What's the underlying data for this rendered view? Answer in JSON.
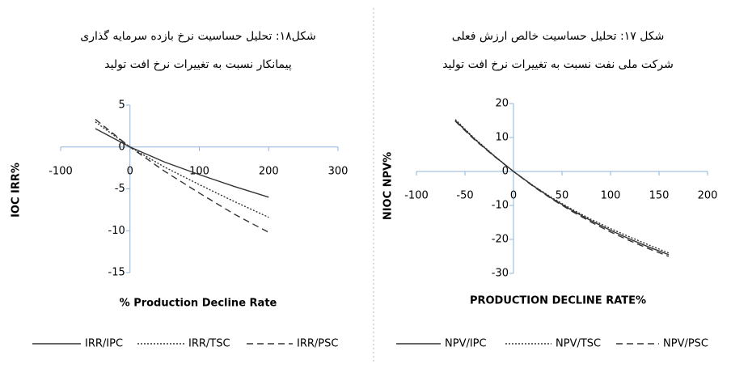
{
  "chart_data": [
    {
      "type": "line",
      "title": [
        "شکل۱۸: تحلیل حساسیت نرخ بازده سرمایه گذاری",
        "پیمانکار نسبت به تغییرات نرخ افت تولید"
      ],
      "y_label": "IOC IRR%",
      "x_label": "% Production Decline Rate",
      "xlim": [
        -100,
        300
      ],
      "xticks": [
        -100,
        0,
        100,
        200,
        300
      ],
      "ylim": [
        -15,
        5
      ],
      "yticks": [
        5,
        0,
        -5,
        -10,
        -15
      ],
      "x": [
        -50,
        0,
        50,
        100,
        150,
        200
      ],
      "series": [
        {
          "name": "IRR/IPC",
          "color": "#333333",
          "style": "solid",
          "values": [
            2.2,
            0,
            -1.8,
            -3.3,
            -4.7,
            -6.0
          ]
        },
        {
          "name": "IRR/TSC",
          "color": "#333333",
          "style": "dotted",
          "values": [
            3.0,
            0,
            -2.4,
            -4.5,
            -6.5,
            -8.4
          ]
        },
        {
          "name": "IRR/PSC",
          "color": "#333333",
          "style": "dashed",
          "values": [
            3.3,
            0,
            -2.9,
            -5.5,
            -8.0,
            -10.2
          ]
        }
      ]
    },
    {
      "type": "line",
      "title": [
        "شکل ۱۷: تحلیل حساسیت خالص ارزش فعلی",
        "شرکت ملی نفت نسبت به تغییرات نرخ افت تولید"
      ],
      "y_label": "NIOC NPV%",
      "x_label": "PRODUCTION DECLINE RATE%",
      "xlim": [
        -100,
        200
      ],
      "xticks": [
        -100,
        -50,
        0,
        50,
        100,
        150,
        200
      ],
      "ylim": [
        -30,
        20
      ],
      "yticks": [
        20,
        10,
        0,
        -10,
        -20,
        -30
      ],
      "x": [
        -60,
        -40,
        -20,
        0,
        20,
        40,
        60,
        80,
        100,
        120,
        140,
        160
      ],
      "series": [
        {
          "name": "NPV/IPC",
          "color": "#333333",
          "style": "solid",
          "values": [
            15,
            9.5,
            4.6,
            0,
            -4.2,
            -8,
            -11.4,
            -14.5,
            -17.3,
            -19.9,
            -22.3,
            -24.5
          ]
        },
        {
          "name": "NPV/TSC",
          "color": "#333333",
          "style": "dotted",
          "values": [
            15.3,
            9.7,
            4.7,
            0,
            -4.1,
            -7.8,
            -11.1,
            -14.1,
            -16.8,
            -19.3,
            -21.7,
            -24.0
          ]
        },
        {
          "name": "NPV/PSC",
          "color": "#333333",
          "style": "dashed",
          "values": [
            14.8,
            9.3,
            4.5,
            0,
            -4.3,
            -8.2,
            -11.7,
            -14.9,
            -17.8,
            -20.4,
            -22.8,
            -25.0
          ]
        }
      ]
    }
  ]
}
